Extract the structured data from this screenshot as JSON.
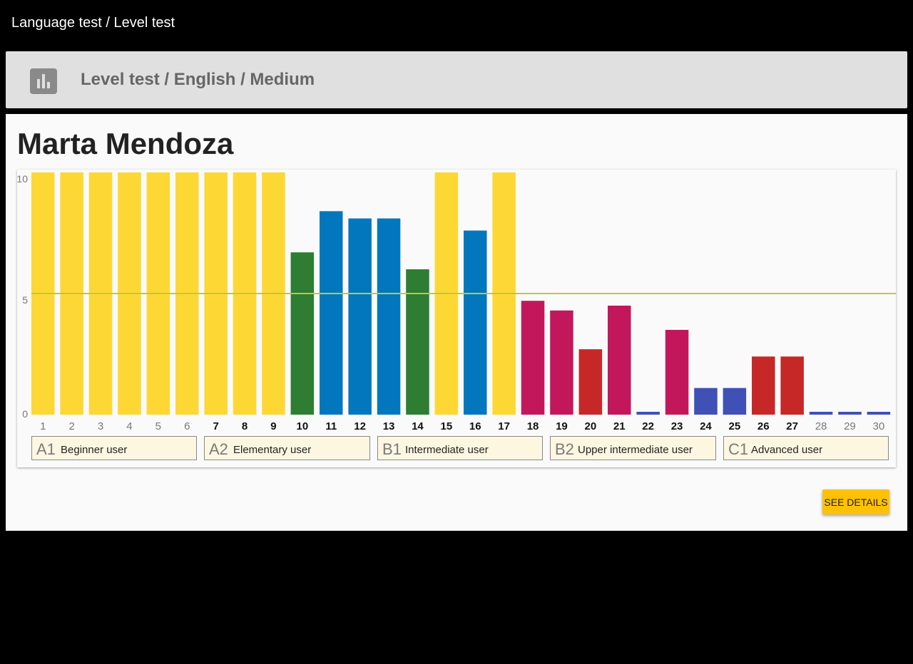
{
  "topbar": {
    "breadcrumb": "Language test / Level test"
  },
  "header": {
    "title": "Level test / English / Medium",
    "icon": "bar-chart-icon"
  },
  "student": {
    "name": "Marta Mendoza"
  },
  "levels": [
    {
      "code": "A1",
      "label": "Beginner user"
    },
    {
      "code": "A2",
      "label": "Elementary user"
    },
    {
      "code": "B1",
      "label": "Intermediate user"
    },
    {
      "code": "B2",
      "label": "Upper intermediate user"
    },
    {
      "code": "C1",
      "label": "Advanced user"
    }
  ],
  "actions": {
    "see_details": "SEE DETAILS"
  },
  "chart_data": {
    "type": "bar",
    "categories": [
      "1",
      "2",
      "3",
      "4",
      "5",
      "6",
      "7",
      "8",
      "9",
      "10",
      "11",
      "12",
      "13",
      "14",
      "15",
      "16",
      "17",
      "18",
      "19",
      "20",
      "21",
      "22",
      "23",
      "24",
      "25",
      "26",
      "27",
      "28",
      "29",
      "30"
    ],
    "values": [
      10,
      10,
      10,
      10,
      10,
      10,
      10,
      10,
      10,
      6.7,
      8.4,
      8.1,
      8.1,
      6,
      10,
      7.6,
      10,
      4.7,
      4.3,
      2.7,
      4.5,
      0.1,
      3.5,
      1.1,
      1.1,
      2.4,
      2.4,
      0.1,
      0.1,
      0.1
    ],
    "bar_colors": [
      "#fdd835",
      "#fdd835",
      "#fdd835",
      "#fdd835",
      "#fdd835",
      "#fdd835",
      "#fdd835",
      "#fdd835",
      "#fdd835",
      "#2e7d32",
      "#0277bd",
      "#0277bd",
      "#0277bd",
      "#2e7d32",
      "#fdd835",
      "#0277bd",
      "#fdd835",
      "#c2185b",
      "#c2185b",
      "#c62828",
      "#c2185b",
      "#3f51b5",
      "#c2185b",
      "#3f51b5",
      "#3f51b5",
      "#c62828",
      "#c62828",
      "#3f51b5",
      "#3f51b5",
      "#3f51b5"
    ],
    "bold_labels": [
      false,
      false,
      false,
      false,
      false,
      false,
      true,
      true,
      true,
      true,
      true,
      true,
      true,
      true,
      true,
      true,
      true,
      true,
      true,
      true,
      true,
      true,
      true,
      true,
      true,
      true,
      true,
      false,
      false,
      false
    ],
    "yticks": [
      10,
      5,
      0
    ],
    "ylim": [
      0,
      10
    ],
    "threshold": 5,
    "threshold_color": "#c0ca33",
    "title": "",
    "xlabel": "",
    "ylabel": ""
  }
}
